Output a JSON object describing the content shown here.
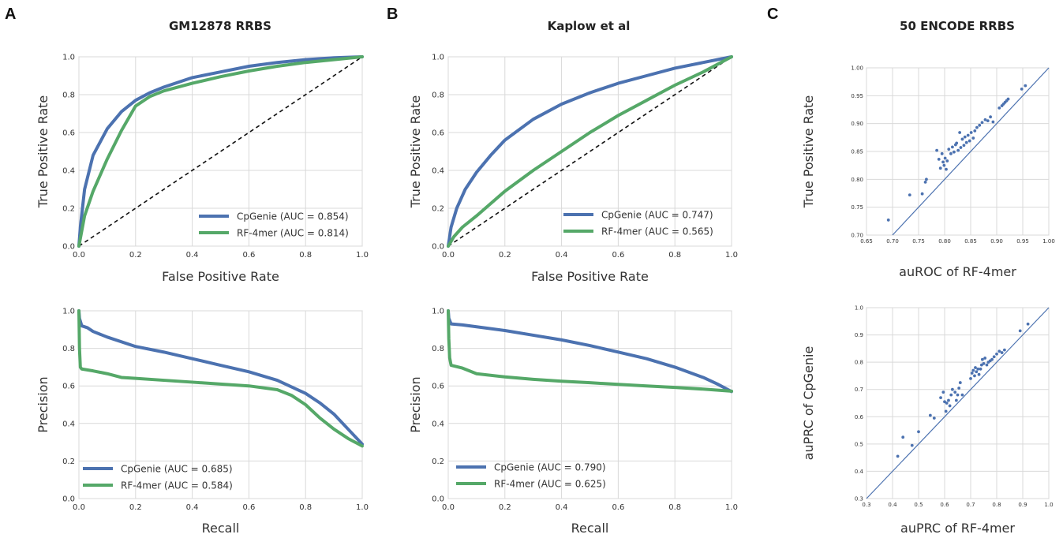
{
  "panels": {
    "A": {
      "letter": "A",
      "title": "GM12878 RRBS"
    },
    "B": {
      "letter": "B",
      "title": "Kaplow et al"
    },
    "C": {
      "letter": "C",
      "title": "50 ENCODE RRBS"
    }
  },
  "colors": {
    "cpgenie": "#4c72b0",
    "rf4mer": "#55a868",
    "diag": "#111111",
    "grid": "#d9d9d9",
    "scatter": "#4c72b0"
  },
  "chart_data": [
    {
      "id": "A-roc",
      "type": "line",
      "xlabel": "False Positive Rate",
      "ylabel": "True Positive Rate",
      "xlim": [
        0,
        1
      ],
      "ylim": [
        0,
        1
      ],
      "grid": true,
      "legend_position": "bottom-right",
      "diagonal": true,
      "xticks": [
        "0.0",
        "0.2",
        "0.4",
        "0.6",
        "0.8",
        "1.0"
      ],
      "yticks": [
        "0.0",
        "0.2",
        "0.4",
        "0.6",
        "0.8",
        "1.0"
      ],
      "series": [
        {
          "name": "CpGenie (AUC = 0.854)",
          "color": "#4c72b0",
          "x": [
            0,
            0.005,
            0.02,
            0.05,
            0.1,
            0.15,
            0.2,
            0.25,
            0.3,
            0.4,
            0.5,
            0.6,
            0.7,
            0.8,
            0.9,
            1.0
          ],
          "y": [
            0,
            0.1,
            0.3,
            0.48,
            0.62,
            0.71,
            0.77,
            0.81,
            0.84,
            0.89,
            0.92,
            0.95,
            0.97,
            0.985,
            0.995,
            1.0
          ]
        },
        {
          "name": "RF-4mer (AUC = 0.814)",
          "color": "#55a868",
          "x": [
            0,
            0.02,
            0.05,
            0.1,
            0.15,
            0.2,
            0.25,
            0.3,
            0.4,
            0.5,
            0.6,
            0.7,
            0.8,
            0.9,
            1.0
          ],
          "y": [
            0,
            0.16,
            0.29,
            0.46,
            0.61,
            0.74,
            0.79,
            0.82,
            0.86,
            0.895,
            0.925,
            0.95,
            0.97,
            0.985,
            1.0
          ]
        }
      ]
    },
    {
      "id": "A-pr",
      "type": "line",
      "xlabel": "Recall",
      "ylabel": "Precision",
      "xlim": [
        0,
        1
      ],
      "ylim": [
        0,
        1
      ],
      "grid": true,
      "legend_position": "bottom-left",
      "diagonal": false,
      "xticks": [
        "0.0",
        "0.2",
        "0.4",
        "0.6",
        "0.8",
        "1.0"
      ],
      "yticks": [
        "0.0",
        "0.2",
        "0.4",
        "0.6",
        "0.8",
        "1.0"
      ],
      "series": [
        {
          "name": "CpGenie (AUC = 0.685)",
          "color": "#4c72b0",
          "x": [
            0,
            0.002,
            0.01,
            0.03,
            0.05,
            0.1,
            0.2,
            0.3,
            0.4,
            0.5,
            0.6,
            0.7,
            0.8,
            0.85,
            0.9,
            0.95,
            1.0
          ],
          "y": [
            1.0,
            0.96,
            0.92,
            0.91,
            0.89,
            0.86,
            0.81,
            0.78,
            0.745,
            0.71,
            0.675,
            0.63,
            0.56,
            0.51,
            0.45,
            0.37,
            0.29
          ]
        },
        {
          "name": "RF-4mer (AUC = 0.584)",
          "color": "#55a868",
          "x": [
            0,
            0.002,
            0.005,
            0.01,
            0.05,
            0.1,
            0.15,
            0.2,
            0.3,
            0.4,
            0.5,
            0.6,
            0.7,
            0.75,
            0.8,
            0.85,
            0.9,
            0.95,
            1.0
          ],
          "y": [
            1.0,
            0.8,
            0.7,
            0.69,
            0.68,
            0.665,
            0.645,
            0.64,
            0.63,
            0.62,
            0.61,
            0.6,
            0.58,
            0.55,
            0.5,
            0.43,
            0.37,
            0.32,
            0.28
          ]
        }
      ]
    },
    {
      "id": "B-roc",
      "type": "line",
      "xlabel": "False Positive Rate",
      "ylabel": "True Positive Rate",
      "xlim": [
        0,
        1
      ],
      "ylim": [
        0,
        1
      ],
      "grid": true,
      "legend_position": "bottom-right",
      "diagonal": true,
      "xticks": [
        "0.0",
        "0.2",
        "0.4",
        "0.6",
        "0.8",
        "1.0"
      ],
      "yticks": [
        "0.0",
        "0.2",
        "0.4",
        "0.6",
        "0.8",
        "1.0"
      ],
      "series": [
        {
          "name": "CpGenie (AUC = 0.747)",
          "color": "#4c72b0",
          "x": [
            0,
            0.01,
            0.03,
            0.06,
            0.1,
            0.15,
            0.2,
            0.3,
            0.4,
            0.5,
            0.6,
            0.7,
            0.8,
            0.9,
            1.0
          ],
          "y": [
            0,
            0.1,
            0.2,
            0.3,
            0.39,
            0.48,
            0.56,
            0.67,
            0.75,
            0.81,
            0.86,
            0.9,
            0.94,
            0.97,
            1.0
          ]
        },
        {
          "name": "RF-4mer (AUC = 0.565)",
          "color": "#55a868",
          "x": [
            0,
            0.02,
            0.05,
            0.1,
            0.2,
            0.3,
            0.4,
            0.5,
            0.6,
            0.7,
            0.8,
            0.9,
            1.0
          ],
          "y": [
            0,
            0.05,
            0.1,
            0.16,
            0.29,
            0.4,
            0.5,
            0.6,
            0.69,
            0.77,
            0.85,
            0.92,
            1.0
          ]
        }
      ]
    },
    {
      "id": "B-pr",
      "type": "line",
      "xlabel": "Recall",
      "ylabel": "Precision",
      "xlim": [
        0,
        1
      ],
      "ylim": [
        0,
        1
      ],
      "grid": true,
      "legend_position": "bottom-left",
      "diagonal": false,
      "xticks": [
        "0.0",
        "0.2",
        "0.4",
        "0.6",
        "0.8",
        "1.0"
      ],
      "yticks": [
        "0.0",
        "0.2",
        "0.4",
        "0.6",
        "0.8",
        "1.0"
      ],
      "series": [
        {
          "name": "CpGenie (AUC = 0.790)",
          "color": "#4c72b0",
          "x": [
            0,
            0.002,
            0.01,
            0.05,
            0.1,
            0.2,
            0.3,
            0.4,
            0.5,
            0.6,
            0.7,
            0.8,
            0.9,
            0.95,
            1.0
          ],
          "y": [
            1.0,
            0.96,
            0.93,
            0.925,
            0.915,
            0.895,
            0.87,
            0.845,
            0.815,
            0.78,
            0.745,
            0.7,
            0.645,
            0.61,
            0.57
          ]
        },
        {
          "name": "RF-4mer (AUC = 0.625)",
          "color": "#55a868",
          "x": [
            0,
            0.002,
            0.005,
            0.01,
            0.05,
            0.1,
            0.2,
            0.3,
            0.4,
            0.5,
            0.6,
            0.7,
            0.8,
            0.9,
            1.0
          ],
          "y": [
            1.0,
            0.85,
            0.75,
            0.71,
            0.695,
            0.665,
            0.648,
            0.635,
            0.625,
            0.617,
            0.608,
            0.6,
            0.592,
            0.583,
            0.572
          ]
        }
      ]
    },
    {
      "id": "C-roc",
      "type": "scatter",
      "xlabel": "auROC of RF-4mer",
      "ylabel": "True Positive Rate",
      "xlim": [
        0.65,
        1.0
      ],
      "ylim": [
        0.7,
        1.0
      ],
      "grid": true,
      "diagonal": true,
      "xticks": [
        "0.65",
        "0.70",
        "0.75",
        "0.80",
        "0.85",
        "0.90",
        "0.95",
        "1.00"
      ],
      "yticks": [
        "0.70",
        "0.75",
        "0.80",
        "0.85",
        "0.90",
        "0.95",
        "1.00"
      ],
      "points": [
        [
          0.692,
          0.727
        ],
        [
          0.733,
          0.772
        ],
        [
          0.757,
          0.774
        ],
        [
          0.763,
          0.795
        ],
        [
          0.765,
          0.8
        ],
        [
          0.785,
          0.852
        ],
        [
          0.789,
          0.836
        ],
        [
          0.792,
          0.82
        ],
        [
          0.795,
          0.846
        ],
        [
          0.797,
          0.831
        ],
        [
          0.799,
          0.825
        ],
        [
          0.801,
          0.838
        ],
        [
          0.803,
          0.818
        ],
        [
          0.805,
          0.833
        ],
        [
          0.808,
          0.854
        ],
        [
          0.812,
          0.846
        ],
        [
          0.815,
          0.858
        ],
        [
          0.818,
          0.849
        ],
        [
          0.821,
          0.862
        ],
        [
          0.823,
          0.865
        ],
        [
          0.826,
          0.852
        ],
        [
          0.829,
          0.884
        ],
        [
          0.831,
          0.857
        ],
        [
          0.834,
          0.872
        ],
        [
          0.837,
          0.861
        ],
        [
          0.839,
          0.876
        ],
        [
          0.842,
          0.866
        ],
        [
          0.845,
          0.879
        ],
        [
          0.848,
          0.869
        ],
        [
          0.851,
          0.884
        ],
        [
          0.855,
          0.874
        ],
        [
          0.858,
          0.887
        ],
        [
          0.862,
          0.893
        ],
        [
          0.867,
          0.897
        ],
        [
          0.872,
          0.902
        ],
        [
          0.878,
          0.907
        ],
        [
          0.883,
          0.905
        ],
        [
          0.888,
          0.912
        ],
        [
          0.893,
          0.903
        ],
        [
          0.905,
          0.928
        ],
        [
          0.91,
          0.932
        ],
        [
          0.913,
          0.935
        ],
        [
          0.916,
          0.938
        ],
        [
          0.919,
          0.941
        ],
        [
          0.922,
          0.944
        ],
        [
          0.948,
          0.962
        ],
        [
          0.955,
          0.968
        ]
      ]
    },
    {
      "id": "C-pr",
      "type": "scatter",
      "xlabel": "auPRC of RF-4mer",
      "ylabel": "auPRC of CpGenie",
      "xlim": [
        0.3,
        1.0
      ],
      "ylim": [
        0.3,
        1.0
      ],
      "grid": true,
      "diagonal": true,
      "xticks": [
        "0.3",
        "0.4",
        "0.5",
        "0.6",
        "0.7",
        "0.8",
        "0.9",
        "1.0"
      ],
      "yticks": [
        "0.3",
        "0.4",
        "0.5",
        "0.6",
        "0.7",
        "0.8",
        "0.9",
        "1.0"
      ],
      "points": [
        [
          0.42,
          0.455
        ],
        [
          0.44,
          0.525
        ],
        [
          0.475,
          0.495
        ],
        [
          0.5,
          0.545
        ],
        [
          0.545,
          0.605
        ],
        [
          0.56,
          0.595
        ],
        [
          0.585,
          0.67
        ],
        [
          0.595,
          0.69
        ],
        [
          0.6,
          0.655
        ],
        [
          0.605,
          0.62
        ],
        [
          0.608,
          0.65
        ],
        [
          0.615,
          0.66
        ],
        [
          0.62,
          0.64
        ],
        [
          0.625,
          0.68
        ],
        [
          0.63,
          0.7
        ],
        [
          0.64,
          0.69
        ],
        [
          0.645,
          0.66
        ],
        [
          0.65,
          0.68
        ],
        [
          0.655,
          0.705
        ],
        [
          0.66,
          0.725
        ],
        [
          0.668,
          0.68
        ],
        [
          0.7,
          0.74
        ],
        [
          0.705,
          0.76
        ],
        [
          0.71,
          0.77
        ],
        [
          0.715,
          0.75
        ],
        [
          0.718,
          0.78
        ],
        [
          0.722,
          0.765
        ],
        [
          0.728,
          0.775
        ],
        [
          0.732,
          0.755
        ],
        [
          0.738,
          0.775
        ],
        [
          0.742,
          0.79
        ],
        [
          0.745,
          0.81
        ],
        [
          0.75,
          0.795
        ],
        [
          0.755,
          0.815
        ],
        [
          0.762,
          0.79
        ],
        [
          0.768,
          0.8
        ],
        [
          0.775,
          0.805
        ],
        [
          0.782,
          0.81
        ],
        [
          0.79,
          0.82
        ],
        [
          0.8,
          0.83
        ],
        [
          0.81,
          0.84
        ],
        [
          0.82,
          0.835
        ],
        [
          0.83,
          0.845
        ],
        [
          0.89,
          0.915
        ],
        [
          0.92,
          0.94
        ]
      ]
    }
  ]
}
